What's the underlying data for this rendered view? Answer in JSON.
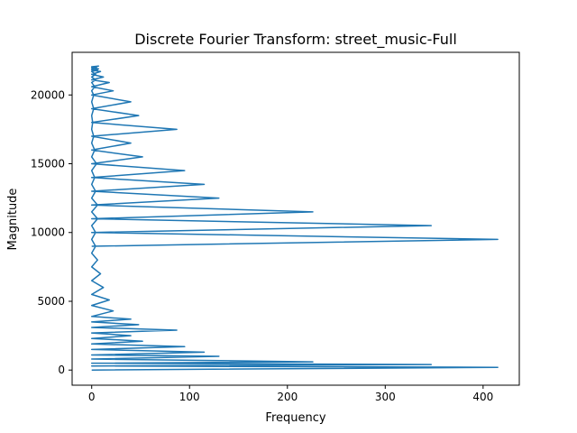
{
  "chart_data": {
    "type": "line",
    "title": "Discrete Fourier Transform: street_music-Full",
    "xlabel": "Frequency",
    "ylabel": "Magnitude",
    "xlim": [
      -20,
      437
    ],
    "ylim": [
      -1100,
      23100
    ],
    "x_ticks": [
      0,
      100,
      200,
      300,
      400
    ],
    "x_tick_labels": [
      "0",
      "100",
      "200",
      "300",
      "400"
    ],
    "y_ticks": [
      0,
      5000,
      10000,
      15000,
      20000
    ],
    "y_tick_labels": [
      "0",
      "5000",
      "10000",
      "15000",
      "20000"
    ],
    "grid": false,
    "legend": "none",
    "series_color": "#1f77b4",
    "series": [
      {
        "x": [
          0,
          415,
          0,
          347,
          0,
          226,
          0,
          130,
          0,
          115,
          0,
          95,
          0,
          52,
          0,
          40,
          0,
          87,
          0,
          48,
          0,
          40,
          0,
          22,
          0,
          18,
          0,
          12,
          0,
          9,
          0,
          6,
          0,
          4,
          0,
          4,
          0,
          6,
          0,
          6,
          0,
          4,
          0,
          3,
          0,
          5,
          0,
          3,
          0,
          2,
          0,
          1,
          0,
          2,
          0,
          2,
          0,
          3,
          0,
          4,
          0,
          4,
          0,
          6,
          0,
          5,
          0,
          7,
          0,
          7,
          0,
          9,
          0,
          12,
          0,
          18,
          0,
          22,
          0,
          40,
          0,
          48,
          0,
          87,
          0,
          40,
          0,
          52,
          0,
          95,
          0,
          115,
          0,
          130,
          0,
          226,
          0,
          347,
          0,
          415,
          0
        ],
        "y": [
          0,
          200,
          300,
          400,
          500,
          600,
          800,
          1000,
          1100,
          1300,
          1500,
          1700,
          1900,
          2100,
          2300,
          2500,
          2700,
          2900,
          3100,
          3300,
          3500,
          3700,
          3900,
          4300,
          4700,
          5100,
          5500,
          6000,
          6500,
          7000,
          7500,
          8000,
          8500,
          9000,
          9500,
          10000,
          10500,
          11000,
          11500,
          12000,
          12500,
          13000,
          13500,
          14000,
          14500,
          15000,
          15500,
          16000,
          16500,
          17000,
          17500,
          18000,
          18500,
          19000,
          19500,
          20000,
          20300,
          20600,
          20900,
          21100,
          21300,
          21500,
          21700,
          21800,
          21900,
          22000,
          22050,
          22100,
          22000,
          21900,
          21800,
          21700,
          21500,
          21300,
          21100,
          20900,
          20600,
          20300,
          20000,
          19500,
          19000,
          18500,
          18000,
          17500,
          17000,
          16500,
          16000,
          15500,
          15000,
          14500,
          14000,
          13500,
          13000,
          12500,
          12000,
          11500,
          11000,
          10500,
          10000,
          9500,
          9000
        ]
      }
    ]
  }
}
